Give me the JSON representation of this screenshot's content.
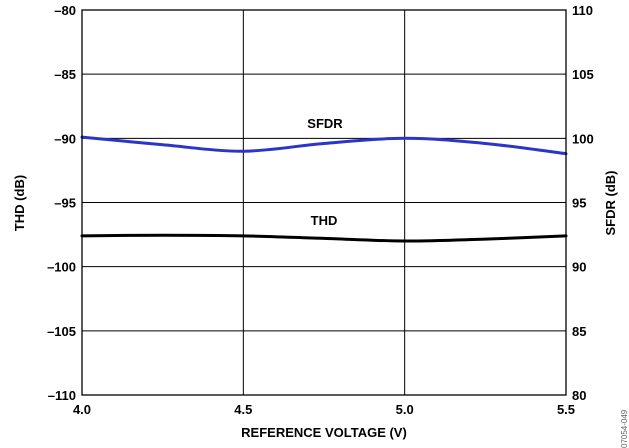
{
  "chart_data": {
    "type": "line",
    "xlabel": "REFERENCE VOLTAGE (V)",
    "ylabel_left": "THD (dB)",
    "ylabel_right": "SFDR (dB)",
    "xlim": [
      4.0,
      5.5
    ],
    "ylim_left": [
      -110,
      -80
    ],
    "ylim_right": [
      80,
      110
    ],
    "x_ticks": [
      "4.0",
      "4.5",
      "5.0",
      "5.5"
    ],
    "y_ticks_left": [
      "–80",
      "–85",
      "–90",
      "–95",
      "–100",
      "–105",
      "–110"
    ],
    "y_ticks_right": [
      "110",
      "105",
      "100",
      "95",
      "90",
      "85",
      "80"
    ],
    "grid": true,
    "series": [
      {
        "name": "SFDR",
        "axis": "right",
        "color": "#2b35c8",
        "x": [
          4.0,
          4.25,
          4.5,
          4.75,
          5.0,
          5.25,
          5.5
        ],
        "y": [
          100.1,
          99.5,
          99.0,
          99.6,
          100.0,
          99.6,
          98.8
        ]
      },
      {
        "name": "THD",
        "axis": "left",
        "color": "#000000",
        "x": [
          4.0,
          4.25,
          4.5,
          4.75,
          5.0,
          5.25,
          5.5
        ],
        "y": [
          -97.6,
          -97.55,
          -97.6,
          -97.8,
          -98.0,
          -97.85,
          -97.6
        ]
      }
    ],
    "side_code": "07054-049"
  }
}
